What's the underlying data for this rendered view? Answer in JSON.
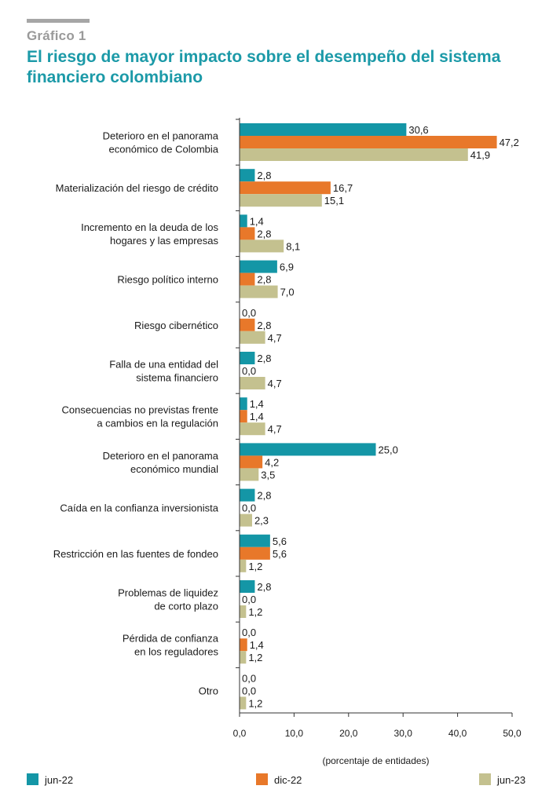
{
  "header": {
    "kicker": "Gráfico 1",
    "title": "El riesgo de mayor impacto sobre el desempeño del sistema financiero colombiano"
  },
  "chart_data": {
    "type": "bar",
    "orientation": "horizontal",
    "categories": [
      [
        "Deterioro en el panorama",
        "económico de Colombia"
      ],
      [
        "Materialización del riesgo de crédito"
      ],
      [
        "Incremento en la deuda de los",
        "hogares y las empresas"
      ],
      [
        "Riesgo político interno"
      ],
      [
        "Riesgo cibernético"
      ],
      [
        "Falla de una entidad del",
        "sistema financiero"
      ],
      [
        "Consecuencias no previstas frente",
        "a cambios en la regulación"
      ],
      [
        "Deterioro en el panorama",
        "económico mundial"
      ],
      [
        "Caída en la confianza inversionista"
      ],
      [
        "Restricción en las fuentes de fondeo"
      ],
      [
        "Problemas de liquidez",
        "de corto plazo"
      ],
      [
        "Pérdida de confianza",
        "en los reguladores"
      ],
      [
        "Otro"
      ]
    ],
    "series": [
      {
        "name": "jun-22",
        "color": "#1496a6",
        "values": [
          30.6,
          2.8,
          1.4,
          6.9,
          0.0,
          2.8,
          1.4,
          25.0,
          2.8,
          5.6,
          2.8,
          0.0,
          0.0
        ],
        "labels": [
          "30,6",
          "2,8",
          "1,4",
          "6,9",
          "0,0",
          "2,8",
          "1,4",
          "25,0",
          "2,8",
          "5,6",
          "2,8",
          "0,0",
          "0,0"
        ]
      },
      {
        "name": "dic-22",
        "color": "#e8782a",
        "values": [
          47.2,
          16.7,
          2.8,
          2.8,
          2.8,
          0.0,
          1.4,
          4.2,
          0.0,
          5.6,
          0.0,
          1.4,
          0.0
        ],
        "labels": [
          "47,2",
          "16,7",
          "2,8",
          "2,8",
          "2,8",
          "0,0",
          "1,4",
          "4,2",
          "0,0",
          "5,6",
          "0,0",
          "1,4",
          "0,0"
        ]
      },
      {
        "name": "jun-23",
        "color": "#c4c18f",
        "values": [
          41.9,
          15.1,
          8.1,
          7.0,
          4.7,
          4.7,
          4.7,
          3.5,
          2.3,
          1.2,
          1.2,
          1.2,
          1.2
        ],
        "labels": [
          "41,9",
          "15,1",
          "8,1",
          "7,0",
          "4,7",
          "4,7",
          "4,7",
          "3,5",
          "2,3",
          "1,2",
          "1,2",
          "1,2",
          "1,2"
        ]
      }
    ],
    "xlim": [
      0,
      50
    ],
    "xticks": [
      "0,0",
      "10,0",
      "20,0",
      "30,0",
      "40,0",
      "50,0"
    ],
    "xlabel": "(porcentaje de entidades)",
    "grid": false,
    "legend_position": "bottom"
  }
}
